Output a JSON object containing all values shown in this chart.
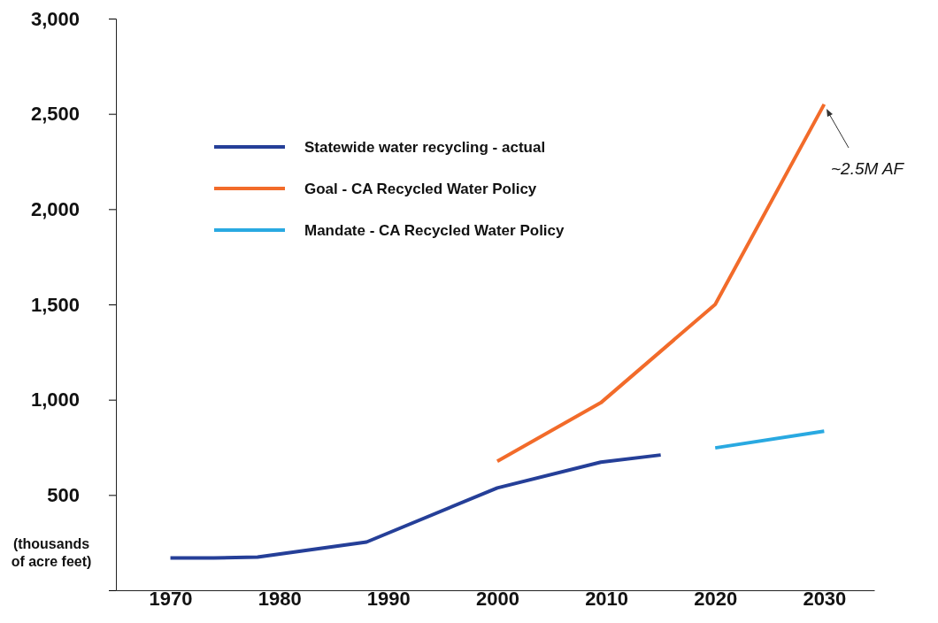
{
  "chart_data": {
    "type": "line",
    "ylabel": "(thousands\nof acre feet)",
    "xlim": [
      1965,
      2034.6
    ],
    "xticks": [
      1970,
      1980,
      1990,
      2000,
      2010,
      2020,
      2030
    ],
    "ylim": [
      0,
      3000
    ],
    "yticks": [
      {
        "value": 0,
        "label": null
      },
      {
        "value": 500,
        "label": "500"
      },
      {
        "value": 1000,
        "label": "1,000"
      },
      {
        "value": 1500,
        "label": "1,500"
      },
      {
        "value": 2000,
        "label": "2,000"
      },
      {
        "value": 2500,
        "label": "2,500"
      },
      {
        "value": 3000,
        "label": "3,000"
      }
    ],
    "series": [
      {
        "name": "Statewide water recycling - actual",
        "color": "#253f98",
        "x": [
          1970,
          1974,
          1978,
          1988,
          2000,
          2009.5,
          2015
        ],
        "values": [
          170,
          170,
          174,
          253,
          537,
          672,
          710
        ]
      },
      {
        "name": "Goal - CA Recycled Water Policy",
        "color": "#f26b2a",
        "x": [
          2000,
          2009.5,
          2020,
          2030
        ],
        "values": [
          677,
          984,
          1500,
          2550
        ]
      },
      {
        "name": "Mandate - CA Recycled Water Policy",
        "color": "#29a9e1",
        "x": [
          2020,
          2030
        ],
        "values": [
          747,
          835
        ]
      }
    ],
    "annotations": [
      "~2.5M AF"
    ],
    "legend": "top left",
    "grid": false,
    "marker": "none",
    "line_style": "solid"
  }
}
